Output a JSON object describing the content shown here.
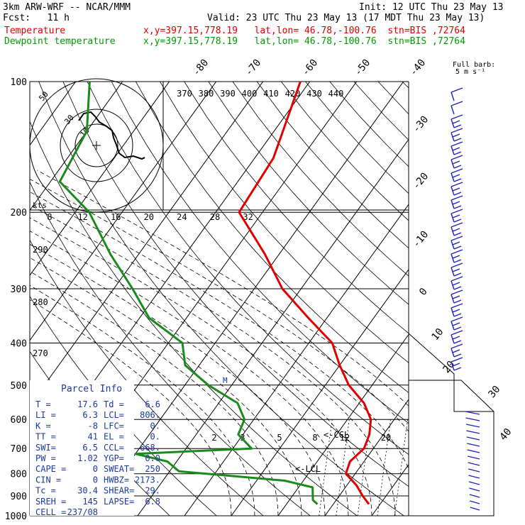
{
  "header": {
    "model": "3km ARW-WRF -- NCAR/MMM",
    "init": "Init: 12 UTC Thu 23 May 13",
    "fcst": "Fcst:   11 h",
    "valid": "Valid: 23 UTC Thu 23 May 13 (17 MDT Thu 23 May 13)",
    "line_temp_label": "Temperature",
    "line_temp_info": "x,y=397.15,778.19   lat,lon= 46.78,-100.76  stn=BIS ,72764",
    "line_dew_label": "Dewpoint temperature",
    "line_dew_info": "x,y=397.15,778.19   lat,lon= 46.78,-100.76  stn=BIS ,72764"
  },
  "colors": {
    "temperature": "#e00000",
    "dewpoint": "#1a8a1a",
    "info_text": "#1a3aa0",
    "barbs": "#2020c0"
  },
  "barb_legend": {
    "line1": "Full barb:",
    "line2": "5 m s⁻¹"
  },
  "hodograph": {
    "units": "kts",
    "ring_labels": [
      "50",
      "30",
      "10"
    ]
  },
  "parcel_info": {
    "title": "Parcel Info",
    "rows": [
      {
        "l": "T  =",
        "lv": "17.6",
        "r": "Td =",
        "rv": "6.6"
      },
      {
        "l": "LI =",
        "lv": "6.3",
        "r": "LCL=",
        "rv": "806."
      },
      {
        "l": "K  =",
        "lv": "-8",
        "r": "LFC=",
        "rv": "0."
      },
      {
        "l": "TT =",
        "lv": "41",
        "r": "EL =",
        "rv": "0."
      },
      {
        "l": "SWI=",
        "lv": "6.5",
        "r": "CCL=",
        "rv": "668."
      },
      {
        "l": "PW =",
        "lv": "1.02",
        "r": "YGP=",
        "rv": "0.0"
      },
      {
        "l": "CAPE =",
        "lv": "0",
        "r": "SWEAT=",
        "rv": "250"
      },
      {
        "l": "CIN  =",
        "lv": "0",
        "r": "HWBZ=",
        "rv": "2173."
      },
      {
        "l": "Tc   =",
        "lv": "30.4",
        "r": "SHEAR=",
        "rv": "29."
      },
      {
        "l": "SREH =",
        "lv": "145",
        "r": "LAPSE=",
        "rv": "6.8"
      },
      {
        "l": "CELL =",
        "lv": "237/08",
        "r": "",
        "rv": ""
      }
    ]
  },
  "chart_data": {
    "type": "line",
    "title": "Skew-T log-P sounding",
    "pressure_axis": {
      "levels": [
        100,
        200,
        300,
        400,
        500,
        600,
        700,
        800,
        900,
        1000
      ],
      "scale": "log"
    },
    "isotherm_labels": [
      -80,
      -70,
      -60,
      -50,
      -40,
      -30,
      -20,
      -10,
      0,
      10,
      20,
      30,
      40
    ],
    "theta_e_labels": [
      370,
      380,
      390,
      400,
      410,
      420,
      430,
      440
    ],
    "mixing_ratio_labels": [
      2,
      3,
      5,
      8,
      12,
      20
    ],
    "hodo_speed_labels": [
      8,
      12,
      16,
      20,
      24,
      28,
      32
    ],
    "dry_adiabat_labels": [
      290,
      280,
      270
    ],
    "annotations": [
      "<-CCL",
      "<-LCL",
      "M"
    ],
    "series": [
      {
        "name": "Temperature",
        "points": [
          [
            100,
            -62
          ],
          [
            150,
            -56
          ],
          [
            200,
            -55
          ],
          [
            250,
            -43
          ],
          [
            300,
            -34
          ],
          [
            350,
            -24
          ],
          [
            400,
            -15
          ],
          [
            450,
            -10
          ],
          [
            500,
            -5
          ],
          [
            550,
            1
          ],
          [
            600,
            5
          ],
          [
            650,
            7
          ],
          [
            700,
            8
          ],
          [
            750,
            7
          ],
          [
            800,
            8
          ],
          [
            850,
            12
          ],
          [
            900,
            15
          ],
          [
            940,
            17.6
          ]
        ]
      },
      {
        "name": "Dewpoint temperature",
        "points": [
          [
            100,
            -107
          ],
          [
            130,
            -100
          ],
          [
            170,
            -98
          ],
          [
            200,
            -87
          ],
          [
            250,
            -76
          ],
          [
            300,
            -66
          ],
          [
            350,
            -58
          ],
          [
            400,
            -47
          ],
          [
            450,
            -43
          ],
          [
            500,
            -35
          ],
          [
            550,
            -26
          ],
          [
            600,
            -22
          ],
          [
            650,
            -21
          ],
          [
            700,
            -16
          ],
          [
            720,
            -40
          ],
          [
            750,
            -32
          ],
          [
            790,
            -28
          ],
          [
            830,
            -4
          ],
          [
            860,
            3
          ],
          [
            920,
            5
          ],
          [
            940,
            6.6
          ]
        ]
      }
    ]
  }
}
